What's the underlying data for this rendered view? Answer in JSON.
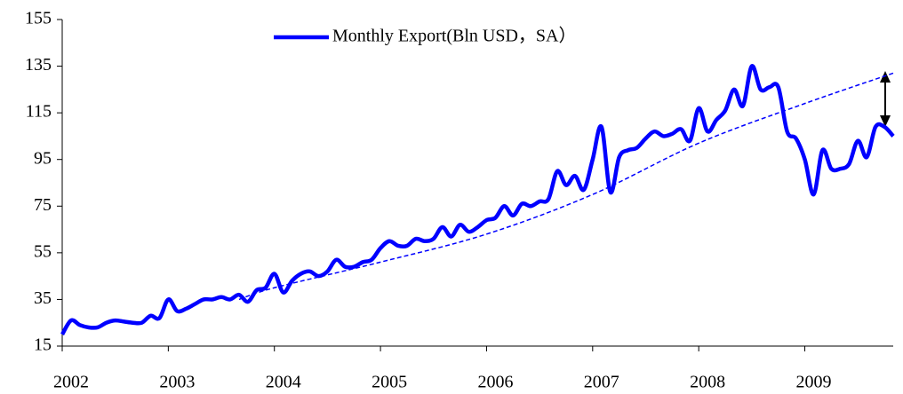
{
  "chart_data": {
    "type": "line",
    "legend": "top",
    "categories": [
      "2002",
      null,
      null,
      null,
      null,
      null,
      null,
      null,
      null,
      null,
      null,
      null,
      "2003",
      null,
      null,
      null,
      null,
      null,
      null,
      null,
      null,
      null,
      null,
      null,
      "2004",
      null,
      null,
      null,
      null,
      null,
      null,
      null,
      null,
      null,
      null,
      null,
      "2005",
      null,
      null,
      null,
      null,
      null,
      null,
      null,
      null,
      null,
      null,
      null,
      "2006",
      null,
      null,
      null,
      null,
      null,
      null,
      null,
      null,
      null,
      null,
      null,
      "2007",
      null,
      null,
      null,
      null,
      null,
      null,
      null,
      null,
      null,
      null,
      null,
      "2008",
      null,
      null,
      null,
      null,
      null,
      null,
      null,
      null,
      null,
      null,
      null,
      "2009",
      null,
      null,
      null,
      null,
      null,
      null,
      null,
      null,
      null,
      null
    ],
    "series": [
      {
        "name": "Monthly Export(Bln USD，SA）",
        "color": "#0000ff",
        "values": [
          20,
          26,
          24,
          23,
          23,
          25,
          26,
          25.5,
          25,
          25,
          28,
          27,
          35,
          30,
          31,
          33,
          35,
          35,
          36,
          35,
          37,
          34,
          39,
          40,
          46,
          38,
          43,
          46,
          47,
          45,
          47,
          52,
          49,
          49,
          51,
          52,
          57,
          60,
          58,
          58,
          61,
          60,
          61,
          66,
          62,
          67,
          64,
          66,
          69,
          70,
          75,
          71,
          76,
          75,
          77,
          78,
          90,
          84,
          88,
          82,
          95,
          109,
          81,
          96,
          99,
          100,
          104,
          107,
          105,
          106,
          108,
          103,
          117,
          107,
          112,
          116,
          125,
          118,
          135,
          125,
          126,
          126,
          107,
          104,
          95,
          80,
          99,
          91,
          91,
          93,
          103,
          96,
          109,
          109,
          105
        ]
      }
    ],
    "trend": {
      "color": "#0000ff",
      "x": [
        20,
        24,
        36,
        48,
        60,
        72,
        84,
        94
      ],
      "values": [
        35,
        40,
        51,
        63,
        80,
        102,
        119,
        132
      ]
    },
    "ylim": [
      15,
      155
    ],
    "yticks": [
      15,
      35,
      55,
      75,
      95,
      115,
      135,
      155
    ]
  }
}
